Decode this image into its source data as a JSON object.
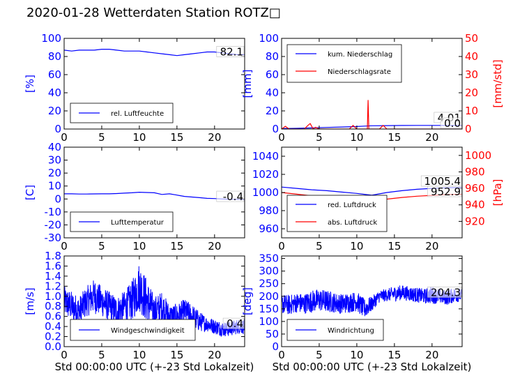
{
  "title": "2020-01-28 Wetterdaten Station ROTZ□",
  "colors": {
    "primary": "#0000ff",
    "secondary": "#ff0000",
    "light": "#8080ff",
    "text": "#000000"
  },
  "chart_data": [
    {
      "id": "humidity",
      "type": "line",
      "xlim": [
        0,
        24
      ],
      "xticks": [
        0,
        5,
        10,
        15,
        20
      ],
      "ylim": [
        0,
        100
      ],
      "yticks": [
        0,
        20,
        40,
        60,
        80,
        100
      ],
      "ylabel": "[%]",
      "legend_placement": "lower-left",
      "series": [
        {
          "name": "rel. Luftfeuchte",
          "color": "#0000ff",
          "x": [
            0,
            1,
            2,
            3,
            4,
            5,
            6,
            7,
            8,
            9,
            10,
            11,
            12,
            13,
            14,
            15,
            16,
            17,
            18,
            19,
            20,
            21,
            22,
            23,
            24
          ],
          "y": [
            87,
            86,
            87,
            87,
            87,
            88,
            88,
            87,
            86,
            86,
            86,
            85,
            84,
            83,
            82,
            81,
            82,
            83,
            84,
            85,
            85,
            84,
            83,
            82,
            82
          ]
        }
      ],
      "current_value": "82.1"
    },
    {
      "id": "precip",
      "type": "line",
      "xlim": [
        0,
        24
      ],
      "xticks": [
        0,
        5,
        10,
        15,
        20
      ],
      "ylim": [
        0,
        100
      ],
      "yticks": [
        0,
        20,
        40,
        60,
        80,
        100
      ],
      "ylabel": "[mm]",
      "y2lim": [
        0,
        50
      ],
      "y2ticks": [
        0,
        10,
        20,
        30,
        40,
        50
      ],
      "y2label": "[mm/std]",
      "legend_placement": "upper-left",
      "series": [
        {
          "name": "kum. Niederschlag",
          "color": "#0000ff",
          "axis": "left",
          "x": [
            0,
            2,
            4,
            6,
            8,
            10,
            11,
            12,
            14,
            16,
            18,
            20,
            22,
            24
          ],
          "y": [
            0.5,
            0.8,
            1.2,
            1.8,
            2.2,
            2.8,
            3.2,
            3.6,
            3.8,
            3.9,
            4.0,
            4.0,
            4.01,
            4.01
          ]
        },
        {
          "name": "Niederschlagsrate",
          "color": "#ff0000",
          "axis": "right",
          "x": [
            0,
            0.5,
            1,
            2,
            3,
            3.5,
            3.8,
            4,
            4.2,
            4.5,
            5,
            6,
            7,
            8,
            9,
            9.5,
            10,
            11,
            11.4,
            11.5,
            11.6,
            12,
            13,
            13.5,
            14,
            15,
            16,
            18,
            20,
            22,
            24
          ],
          "y": [
            0,
            1.5,
            0,
            0,
            0,
            2,
            3,
            1.5,
            0,
            1,
            0,
            0,
            0,
            0,
            0,
            2,
            0,
            0,
            0,
            16,
            0,
            0,
            0,
            2,
            0,
            0,
            0,
            0,
            0,
            0,
            0
          ]
        }
      ],
      "current_values": [
        "4.01",
        "0.0"
      ]
    },
    {
      "id": "temperature",
      "type": "line",
      "xlim": [
        0,
        24
      ],
      "xticks": [
        0,
        5,
        10,
        15,
        20
      ],
      "ylim": [
        -30,
        40
      ],
      "yticks": [
        -30,
        -20,
        -10,
        0,
        10,
        20,
        30,
        40
      ],
      "ylabel": "[C]",
      "legend_placement": "lower-left",
      "series": [
        {
          "name": "Lufttemperatur",
          "color": "#0000ff",
          "x": [
            0,
            1,
            2,
            3,
            4,
            5,
            6,
            7,
            8,
            9,
            10,
            11,
            12,
            13,
            14,
            15,
            16,
            17,
            18,
            19,
            20,
            21,
            22,
            23,
            24
          ],
          "y": [
            4,
            4,
            3.8,
            3.8,
            3.9,
            4,
            4,
            4.2,
            4.5,
            4.8,
            5.2,
            5,
            4.8,
            3.5,
            4,
            3,
            2,
            1.5,
            1,
            0.5,
            0.3,
            0,
            -0.2,
            -0.3,
            -0.4
          ]
        }
      ],
      "current_value": "-0.4"
    },
    {
      "id": "pressure",
      "type": "line",
      "xlim": [
        0,
        24
      ],
      "xticks": [
        0,
        5,
        10,
        15,
        20
      ],
      "ylim": [
        950,
        1050
      ],
      "yticks": [
        960,
        980,
        1000,
        1020,
        1040
      ],
      "y2lim": [
        900,
        1010
      ],
      "y2ticks": [
        920,
        940,
        960,
        980,
        1000
      ],
      "y2label": "[hPa]",
      "legend_placement": "lower-left",
      "series": [
        {
          "name": "red. Luftdruck",
          "color": "#0000ff",
          "axis": "left",
          "x": [
            0,
            2,
            4,
            6,
            8,
            10,
            11,
            12,
            14,
            16,
            18,
            20,
            22,
            24
          ],
          "y": [
            1006,
            1004.5,
            1003,
            1002,
            1000.5,
            999,
            998,
            997,
            1000,
            1002,
            1003.5,
            1004.5,
            1005.2,
            1005.4
          ]
        },
        {
          "name": "abs. Luftdruck",
          "color": "#ff0000",
          "axis": "right",
          "x": [
            0,
            2,
            4,
            6,
            8,
            10,
            11,
            12,
            14,
            16,
            18,
            20,
            22,
            24
          ],
          "y": [
            955,
            953,
            951,
            949.5,
            948,
            946.5,
            945.5,
            945,
            947,
            949,
            950.5,
            951.5,
            952.5,
            952.9
          ]
        }
      ],
      "current_values": [
        "1005.4",
        "952.9"
      ]
    },
    {
      "id": "wind_speed",
      "type": "line",
      "xlim": [
        0,
        24
      ],
      "xticks": [
        0,
        5,
        10,
        15,
        20
      ],
      "xlabel": "Std 00:00:00 UTC (+-23 Std Lokalzeit)",
      "ylim": [
        0,
        1.8
      ],
      "yticks": [
        0.0,
        0.2,
        0.4,
        0.6,
        0.8,
        1.0,
        1.2,
        1.4,
        1.6,
        1.8
      ],
      "ylabel": "[m/s]",
      "legend_placement": "lower-left",
      "series": [
        {
          "name": "Windgeschwindigkeit",
          "color": "#0000ff",
          "x": [
            0,
            1,
            2,
            3,
            4,
            5,
            6,
            7,
            8,
            9,
            10,
            11,
            12,
            13,
            14,
            15,
            16,
            17,
            18,
            19,
            20,
            21,
            22,
            23,
            24
          ],
          "y": [
            0.9,
            0.8,
            0.7,
            0.9,
            1.0,
            0.9,
            0.8,
            0.7,
            0.8,
            0.9,
            1.2,
            0.9,
            0.7,
            0.8,
            0.6,
            0.6,
            0.7,
            0.6,
            0.5,
            0.45,
            0.4,
            0.35,
            0.35,
            0.4,
            0.4
          ],
          "amplitude": [
            0.3,
            0.3,
            0.3,
            0.3,
            0.35,
            0.3,
            0.3,
            0.3,
            0.3,
            0.4,
            0.5,
            0.45,
            0.3,
            0.3,
            0.25,
            0.25,
            0.25,
            0.25,
            0.2,
            0.15,
            0.15,
            0.15,
            0.15,
            0.15,
            0.15
          ]
        }
      ],
      "current_value": "0.4"
    },
    {
      "id": "wind_dir",
      "type": "line",
      "xlim": [
        0,
        24
      ],
      "xticks": [
        0,
        5,
        10,
        15,
        20
      ],
      "xlabel": "Std 00:00:00 UTC (+-23 Std Lokalzeit)",
      "ylim": [
        0,
        360
      ],
      "yticks": [
        0,
        50,
        100,
        150,
        200,
        250,
        300,
        350
      ],
      "ylabel": "[deg]",
      "legend_placement": "lower-left",
      "series": [
        {
          "name": "Windrichtung",
          "color": "#0000ff",
          "x": [
            0,
            1,
            2,
            3,
            4,
            5,
            6,
            7,
            8,
            9,
            10,
            11,
            12,
            13,
            14,
            15,
            16,
            17,
            18,
            19,
            20,
            21,
            22,
            23,
            24
          ],
          "y": [
            170,
            165,
            175,
            170,
            180,
            185,
            180,
            175,
            170,
            175,
            180,
            150,
            170,
            200,
            205,
            210,
            215,
            210,
            205,
            200,
            205,
            200,
            195,
            205,
            204
          ],
          "amplitude": [
            40,
            40,
            40,
            40,
            45,
            45,
            45,
            40,
            40,
            40,
            40,
            40,
            30,
            25,
            25,
            30,
            30,
            30,
            30,
            30,
            35,
            30,
            30,
            30,
            25
          ]
        }
      ],
      "current_value": "204.3"
    }
  ]
}
